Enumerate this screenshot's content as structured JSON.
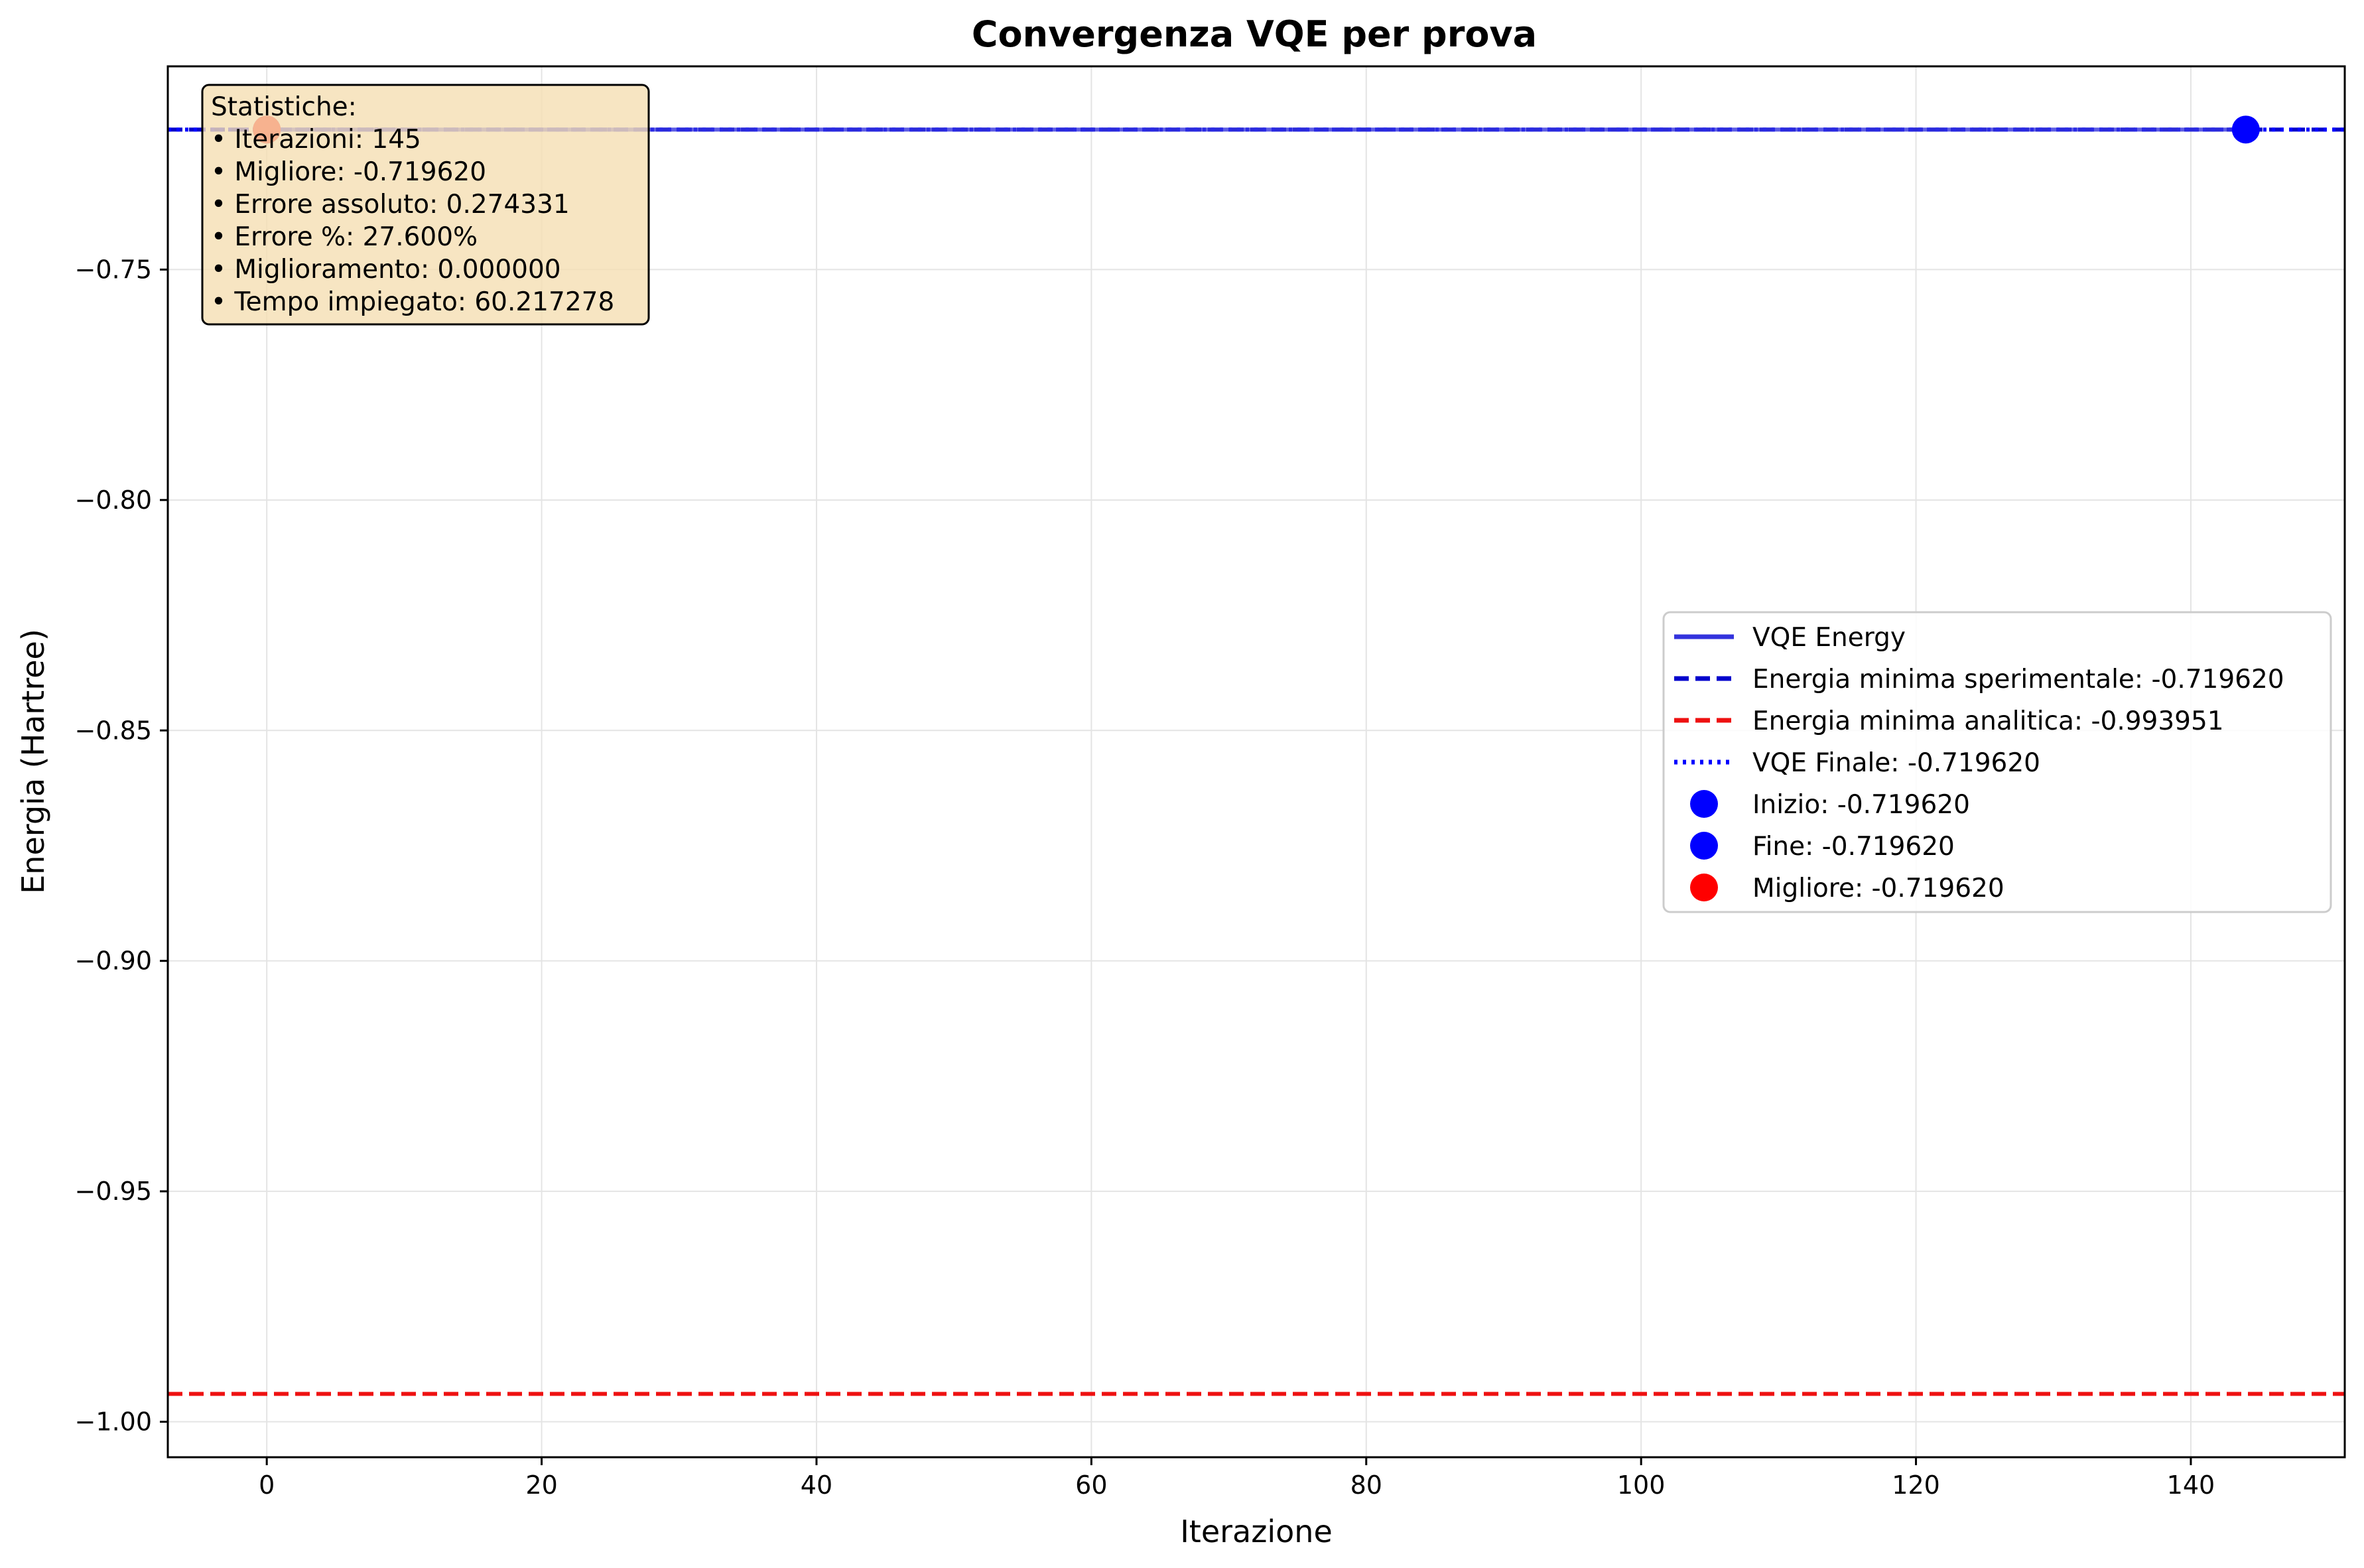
{
  "chart_data": {
    "type": "line",
    "title": "Convergenza VQE per prova",
    "xlabel": "Iterazione",
    "ylabel": "Energia (Hartree)",
    "xlim": [
      -7.2,
      151.2
    ],
    "ylim": [
      -1.0077,
      -0.7059
    ],
    "grid": true,
    "x_ticks": [
      0,
      20,
      40,
      60,
      80,
      100,
      120,
      140
    ],
    "y_ticks": [
      -0.75,
      -0.8,
      -0.85,
      -0.9,
      -0.95,
      -1.0
    ],
    "x_tick_labels": [
      "0",
      "20",
      "40",
      "60",
      "80",
      "100",
      "120",
      "140"
    ],
    "y_tick_labels": [
      "−0.75",
      "−0.80",
      "−0.85",
      "−0.90",
      "−0.95",
      "−1.00"
    ],
    "series": [
      {
        "name": "VQE Energy",
        "x": [
          0,
          144
        ],
        "y": [
          -0.71962,
          -0.71962
        ],
        "color": "#3333dd",
        "style": "solid"
      }
    ],
    "hlines": [
      {
        "name": "Energia minima sperimentale: -0.719620",
        "y": -0.71962,
        "color": "#0000cc",
        "style": "dashed"
      },
      {
        "name": "Energia minima analitica: -0.993951",
        "y": -0.993951,
        "color": "#ee1111",
        "style": "dashed"
      },
      {
        "name": "VQE Finale: -0.719620",
        "y": -0.71962,
        "color": "#0000ff",
        "style": "dotted"
      }
    ],
    "markers": [
      {
        "name": "Inizio: -0.719620",
        "x": 0,
        "y": -0.71962,
        "color": "#0000ff"
      },
      {
        "name": "Fine: -0.719620",
        "x": 144,
        "y": -0.71962,
        "color": "#0000ff"
      },
      {
        "name": "Migliore: -0.719620",
        "x": 0,
        "y": -0.71962,
        "color": "#ff0000"
      }
    ],
    "legend": {
      "placement": "center-right",
      "entries": [
        {
          "label": "VQE Energy",
          "kind": "line",
          "color": "#3333dd",
          "style": "solid"
        },
        {
          "label": "Energia minima sperimentale: -0.719620",
          "kind": "line",
          "color": "#0000cc",
          "style": "dashed"
        },
        {
          "label": "Energia minima analitica: -0.993951",
          "kind": "line",
          "color": "#ee1111",
          "style": "dashed"
        },
        {
          "label": "VQE Finale: -0.719620",
          "kind": "line",
          "color": "#0000ff",
          "style": "dotted"
        },
        {
          "label": "Inizio: -0.719620",
          "kind": "marker",
          "color": "#0000ff"
        },
        {
          "label": "Fine: -0.719620",
          "kind": "marker",
          "color": "#0000ff"
        },
        {
          "label": "Migliore: -0.719620",
          "kind": "marker",
          "color": "#ff0000"
        }
      ]
    },
    "stats_box": {
      "placement": "top-left",
      "background": "#f5deb3",
      "lines": [
        "Statistiche:",
        "• Iterazioni: 145",
        "• Migliore: -0.719620",
        "• Errore assoluto: 0.274331",
        "• Errore %: 27.600%",
        "• Miglioramento: 0.000000",
        "• Tempo impiegato: 60.217278"
      ]
    }
  }
}
